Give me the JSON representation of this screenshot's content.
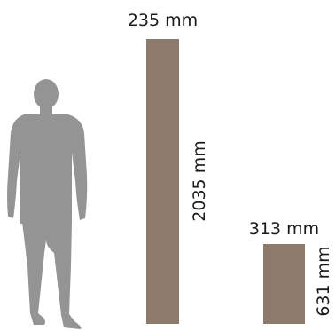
{
  "human_figure": {
    "icon": "person-silhouette-icon",
    "color": "#949494"
  },
  "panel_color": "#8c7b6c",
  "tall_panel": {
    "width_label": "235 mm",
    "height_label": "2035 mm"
  },
  "short_panel": {
    "width_label": "313 mm",
    "height_label": "631 mm"
  }
}
